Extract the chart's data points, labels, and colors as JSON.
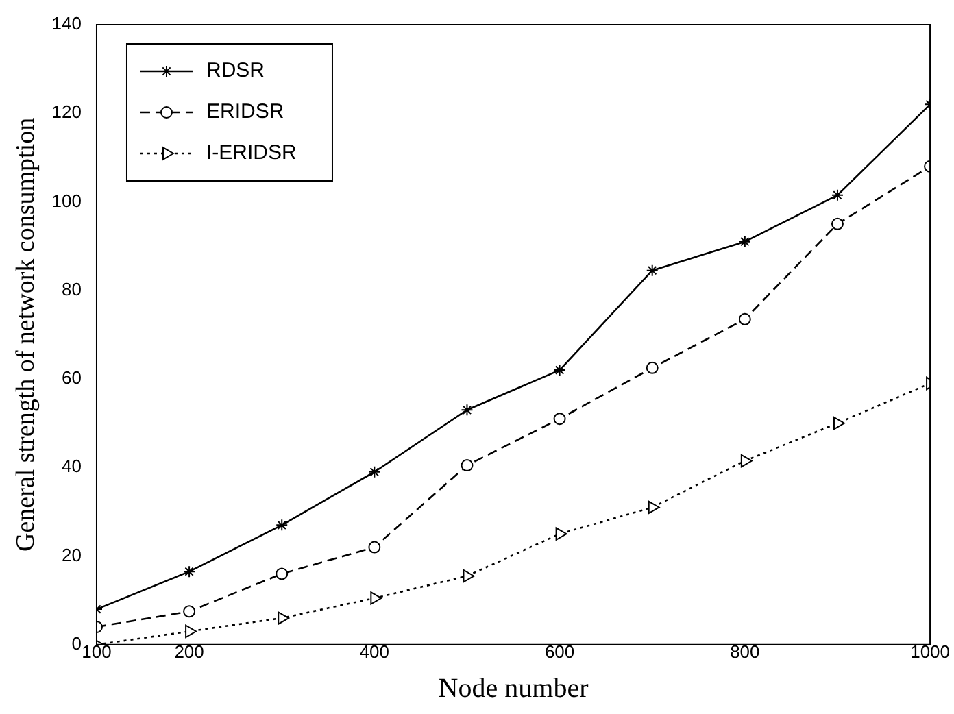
{
  "chart_data": {
    "type": "line",
    "xlabel": "Node number",
    "ylabel": "General strength of network consumption",
    "x": [
      100,
      200,
      300,
      400,
      500,
      600,
      700,
      800,
      900,
      1000
    ],
    "xlim": [
      100,
      1000
    ],
    "xticks": [
      100,
      200,
      400,
      600,
      800,
      1000
    ],
    "ylim": [
      0,
      140
    ],
    "yticks": [
      0,
      20,
      40,
      60,
      80,
      100,
      120,
      140
    ],
    "grid": false,
    "legend": "top left",
    "series": [
      {
        "name": "RDSR",
        "color": "#000000",
        "marker": "cross",
        "line_style": "solid",
        "values": [
          8,
          16.5,
          27,
          39,
          53,
          62,
          84.5,
          91,
          101.5,
          122
        ]
      },
      {
        "name": "ERIDSR",
        "color": "#000000",
        "marker": "circle",
        "line_style": "dashed",
        "values": [
          4,
          7.5,
          16,
          22,
          40.5,
          51,
          62.5,
          73.5,
          95,
          108
        ]
      },
      {
        "name": "I-ERIDSR",
        "color": "#000000",
        "marker": "triangle",
        "line_style": "dotted",
        "values": [
          0,
          3,
          6,
          10.5,
          15.5,
          25,
          31,
          41.5,
          50,
          59
        ]
      }
    ]
  }
}
